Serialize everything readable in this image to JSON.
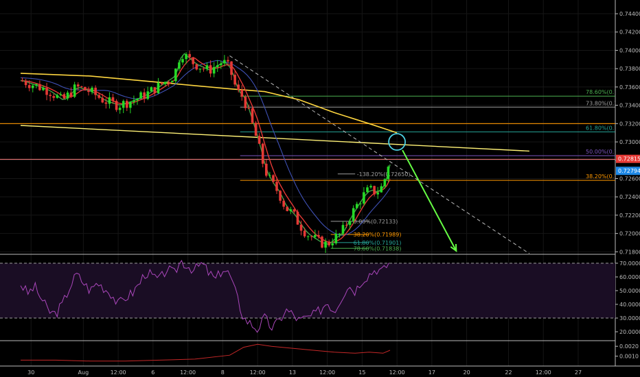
{
  "chart_data": [
    {
      "type": "candlestick",
      "panel": "price",
      "ylim": [
        0.7178,
        0.7452
      ],
      "y_ticks": [
        {
          "value": 0.744,
          "label": "0.74400"
        },
        {
          "value": 0.742,
          "label": "0.74200"
        },
        {
          "value": 0.74,
          "label": "0.74000"
        },
        {
          "value": 0.738,
          "label": "0.73800"
        },
        {
          "value": 0.736,
          "label": "0.73600"
        },
        {
          "value": 0.734,
          "label": "0.73400"
        },
        {
          "value": 0.732,
          "label": "0.73200"
        },
        {
          "value": 0.73,
          "label": "0.73000"
        },
        {
          "value": 0.728,
          "label": "0.72800"
        },
        {
          "value": 0.726,
          "label": "0.72600"
        },
        {
          "value": 0.724,
          "label": "0.72400"
        },
        {
          "value": 0.722,
          "label": "0.72200"
        },
        {
          "value": 0.72,
          "label": "0.72000"
        },
        {
          "value": 0.718,
          "label": "0.71800"
        }
      ],
      "x_ticks": [
        {
          "label": "30",
          "t": 3
        },
        {
          "label": "Aug",
          "t": 18
        },
        {
          "label": "12:00",
          "t": 28
        },
        {
          "label": "6",
          "t": 38
        },
        {
          "label": "12:00",
          "t": 48
        },
        {
          "label": "8",
          "t": 58
        },
        {
          "label": "12:00",
          "t": 68
        },
        {
          "label": "13",
          "t": 78
        },
        {
          "label": "12:00",
          "t": 88
        },
        {
          "label": "15",
          "t": 98
        },
        {
          "label": "12:00",
          "t": 108
        },
        {
          "label": "17",
          "t": 118
        },
        {
          "label": "20",
          "t": 128
        },
        {
          "label": "22",
          "t": 140
        },
        {
          "label": "12:00",
          "t": 150
        },
        {
          "label": "27",
          "t": 160
        }
      ],
      "path_points": [
        [
          0,
          0.7367
        ],
        [
          4,
          0.7362
        ],
        [
          8,
          0.7356
        ],
        [
          12,
          0.7345
        ],
        [
          16,
          0.736
        ],
        [
          20,
          0.7355
        ],
        [
          24,
          0.7345
        ],
        [
          28,
          0.734
        ],
        [
          32,
          0.7345
        ],
        [
          36,
          0.7352
        ],
        [
          40,
          0.7362
        ],
        [
          44,
          0.7372
        ],
        [
          46,
          0.7398
        ],
        [
          50,
          0.7385
        ],
        [
          54,
          0.7378
        ],
        [
          58,
          0.7388
        ],
        [
          60,
          0.738
        ],
        [
          62,
          0.7356
        ],
        [
          64,
          0.7348
        ],
        [
          66,
          0.7325
        ],
        [
          68,
          0.73
        ],
        [
          70,
          0.727
        ],
        [
          72,
          0.7255
        ],
        [
          74,
          0.7245
        ],
        [
          76,
          0.7228
        ],
        [
          78,
          0.7222
        ],
        [
          80,
          0.721
        ],
        [
          82,
          0.72
        ],
        [
          84,
          0.7195
        ],
        [
          86,
          0.719
        ],
        [
          88,
          0.7188
        ],
        [
          90,
          0.7195
        ],
        [
          92,
          0.72
        ],
        [
          94,
          0.7215
        ],
        [
          96,
          0.7228
        ],
        [
          98,
          0.724
        ],
        [
          100,
          0.7248
        ],
        [
          102,
          0.7245
        ],
        [
          104,
          0.7252
        ],
        [
          106,
          0.7283
        ]
      ],
      "last_price": {
        "value": 0.72815,
        "label": "0.72815"
      },
      "secondary_price": {
        "value": 0.72794,
        "label": "0.72794"
      },
      "horizontal_lines": [
        {
          "value": 0.732,
          "color": "#ff9800"
        },
        {
          "value": 0.7281,
          "color": "#e57373"
        }
      ],
      "fib_right": [
        {
          "label": "78.60%(0.7",
          "value": 0.735,
          "color": "#4caf50"
        },
        {
          "label": "73.80%(0.7",
          "value": 0.7338,
          "color": "#9e9e9e"
        },
        {
          "label": "61.80%(0.7",
          "value": 0.7311,
          "color": "#26a69a"
        },
        {
          "label": "50.00%(0.7",
          "value": 0.7285,
          "color": "#7e57c2"
        },
        {
          "label": "38.20%(0.7",
          "value": 0.7258,
          "color": "#ff9800"
        }
      ],
      "fib_small": [
        {
          "label": "0.00%(0.72133)",
          "value": 0.72133,
          "color": "#9e9e9e"
        },
        {
          "label": "38.20%(0.71989)",
          "value": 0.71989,
          "color": "#ff9800"
        },
        {
          "label": "61.80%(0.71901)",
          "value": 0.71901,
          "color": "#26a69a"
        },
        {
          "label": "78.60%(0.71838)",
          "value": 0.71838,
          "color": "#4caf50"
        }
      ],
      "fib_ext": {
        "label": "-138.20%(0.72650)",
        "value": 0.7265
      },
      "fib_bottom": {
        "label": "0.00%(0.71",
        "value": 0.7175
      },
      "ma_yellow": [
        [
          0,
          0.7375
        ],
        [
          20,
          0.7372
        ],
        [
          40,
          0.7365
        ],
        [
          60,
          0.7358
        ],
        [
          70,
          0.7355
        ],
        [
          80,
          0.7346
        ],
        [
          90,
          0.7332
        ],
        [
          100,
          0.732
        ],
        [
          108,
          0.731
        ]
      ],
      "trendline_yellow": [
        [
          0,
          0.7318
        ],
        [
          146,
          0.729
        ]
      ],
      "trendline_dashed": [
        [
          60,
          0.7394
        ],
        [
          146,
          0.7178
        ]
      ],
      "forecast_arrow": [
        [
          108,
          0.73
        ],
        [
          125,
          0.7181
        ]
      ],
      "circle_marker": {
        "t": 108,
        "value": 0.73
      }
    },
    {
      "type": "line",
      "panel": "rsi",
      "ylim": [
        14,
        76
      ],
      "y_ticks": [
        {
          "value": 70,
          "label": "70.0000"
        },
        {
          "value": 60,
          "label": "60.0000"
        },
        {
          "value": 50,
          "label": "50.0000"
        },
        {
          "value": 40,
          "label": "40.0000"
        },
        {
          "value": 30,
          "label": "30.0000"
        },
        {
          "value": 20,
          "label": "20.0000"
        }
      ],
      "band": [
        30,
        70
      ],
      "values": [
        [
          0,
          55
        ],
        [
          2,
          48
        ],
        [
          4,
          53
        ],
        [
          6,
          44
        ],
        [
          8,
          35
        ],
        [
          10,
          33
        ],
        [
          12,
          40
        ],
        [
          14,
          52
        ],
        [
          16,
          62
        ],
        [
          18,
          56
        ],
        [
          20,
          50
        ],
        [
          22,
          56
        ],
        [
          24,
          52
        ],
        [
          26,
          48
        ],
        [
          28,
          40
        ],
        [
          30,
          45
        ],
        [
          32,
          48
        ],
        [
          34,
          55
        ],
        [
          36,
          64
        ],
        [
          38,
          60
        ],
        [
          40,
          58
        ],
        [
          42,
          66
        ],
        [
          44,
          62
        ],
        [
          46,
          72
        ],
        [
          48,
          68
        ],
        [
          50,
          65
        ],
        [
          52,
          70
        ],
        [
          54,
          63
        ],
        [
          56,
          58
        ],
        [
          58,
          66
        ],
        [
          60,
          62
        ],
        [
          62,
          46
        ],
        [
          64,
          30
        ],
        [
          66,
          26
        ],
        [
          68,
          22
        ],
        [
          70,
          30
        ],
        [
          72,
          23
        ],
        [
          74,
          27
        ],
        [
          76,
          36
        ],
        [
          78,
          33
        ],
        [
          80,
          28
        ],
        [
          82,
          30
        ],
        [
          84,
          32
        ],
        [
          86,
          36
        ],
        [
          88,
          42
        ],
        [
          90,
          35
        ],
        [
          92,
          45
        ],
        [
          94,
          54
        ],
        [
          96,
          50
        ],
        [
          98,
          58
        ],
        [
          100,
          62
        ],
        [
          102,
          66
        ],
        [
          104,
          64
        ],
        [
          106,
          72
        ]
      ]
    },
    {
      "type": "line",
      "panel": "indicator",
      "ylim": [
        0.0,
        0.0025
      ],
      "y_ticks": [
        {
          "value": 0.002,
          "label": "0.0020"
        },
        {
          "value": 0.001,
          "label": "0.0010"
        }
      ],
      "values": [
        [
          0,
          0.0006
        ],
        [
          10,
          0.0006
        ],
        [
          20,
          0.0005
        ],
        [
          30,
          0.0005
        ],
        [
          40,
          0.0006
        ],
        [
          50,
          0.0007
        ],
        [
          60,
          0.0011
        ],
        [
          64,
          0.0019
        ],
        [
          68,
          0.0022
        ],
        [
          72,
          0.002
        ],
        [
          78,
          0.0018
        ],
        [
          84,
          0.0016
        ],
        [
          90,
          0.0014
        ],
        [
          96,
          0.0013
        ],
        [
          100,
          0.0014
        ],
        [
          104,
          0.0013
        ],
        [
          106,
          0.0016
        ]
      ]
    }
  ]
}
